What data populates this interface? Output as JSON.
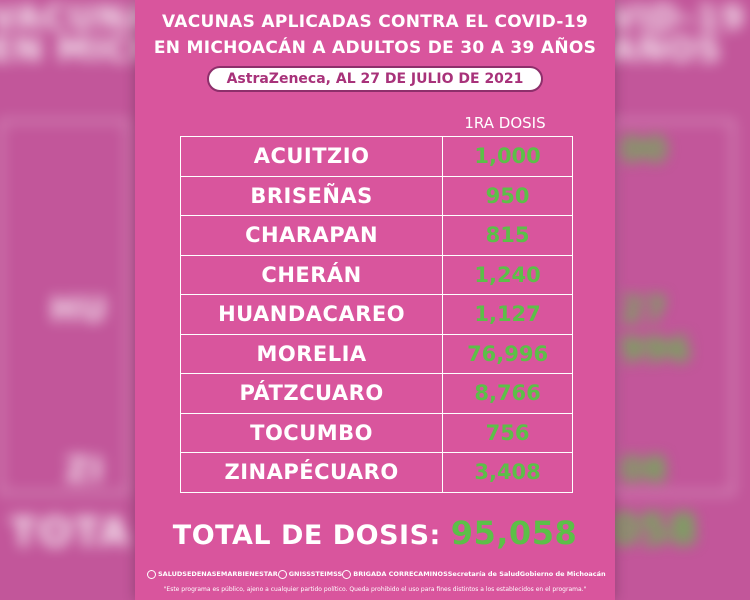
{
  "title": {
    "line1_normal": "VACUNAS APLICADAS ",
    "line1_strong": "CONTRA EL COVID-19",
    "line2": "EN MICHOACÁN A ADULTOS DE 30 A 39 AÑOS",
    "subtitle": "AstraZeneca, AL 27 DE JULIO DE 2021"
  },
  "column_header": "1RA DOSIS",
  "rows": [
    {
      "municipio": "ACUITZIO",
      "dosis": "1,000"
    },
    {
      "municipio": "BRISEÑAS",
      "dosis": "950"
    },
    {
      "municipio": "CHARAPAN",
      "dosis": "815"
    },
    {
      "municipio": "CHERÁN",
      "dosis": "1,240"
    },
    {
      "municipio": "HUANDACAREO",
      "dosis": "1,127"
    },
    {
      "municipio": "MORELIA",
      "dosis": "76,996"
    },
    {
      "municipio": "PÁTZCUARO",
      "dosis": "8,766"
    },
    {
      "municipio": "TOCUMBO",
      "dosis": "756"
    },
    {
      "municipio": "ZINAPÉCUARO",
      "dosis": "3,408"
    }
  ],
  "total": {
    "label": "TOTAL DE DOSIS: ",
    "value": "95,058"
  },
  "logos": [
    "SALUD",
    "SEDENA",
    "SEMAR",
    "BIENESTAR",
    "GN",
    "ISSSTE",
    "IMSS",
    "BRIGADA CORRECAMINOS",
    "Secretaría de Salud",
    "Gobierno de Michoacán"
  ],
  "disclaimer": "\"Este programa es público, ajeno a cualquier partido político. Queda prohibido el uso para fines distintos a los establecidos en el programa.\"",
  "colors": {
    "pink": "#d9559d",
    "green": "#5cbf48",
    "white": "#ffffff"
  }
}
